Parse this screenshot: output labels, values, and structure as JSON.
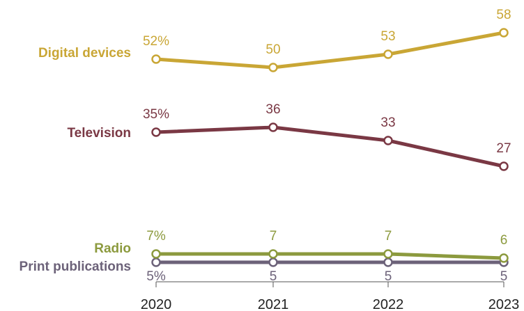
{
  "chart_data": {
    "type": "line",
    "x": [
      "2020",
      "2021",
      "2022",
      "2023"
    ],
    "ylim": [
      0,
      60
    ],
    "grid": false,
    "legend": "labels-left-of-lines",
    "series": [
      {
        "name": "Digital devices",
        "values": [
          52,
          50,
          53,
          58
        ],
        "labels": [
          "52%",
          "50",
          "53",
          "58"
        ],
        "label_pos": "above",
        "color": "#c9a635"
      },
      {
        "name": "Television",
        "values": [
          35,
          36,
          33,
          27
        ],
        "labels": [
          "35%",
          "36",
          "33",
          "27"
        ],
        "label_pos": "above",
        "color": "#7a3844"
      },
      {
        "name": "Radio",
        "values": [
          7,
          7,
          7,
          6
        ],
        "labels": [
          "7%",
          "7",
          "7",
          "6"
        ],
        "label_pos": "above",
        "color": "#8c9a3e"
      },
      {
        "name": "Print publications",
        "values": [
          5,
          5,
          5,
          5
        ],
        "labels": [
          "5%",
          "5",
          "5",
          "5"
        ],
        "label_pos": "below",
        "color": "#6c6279"
      }
    ]
  }
}
